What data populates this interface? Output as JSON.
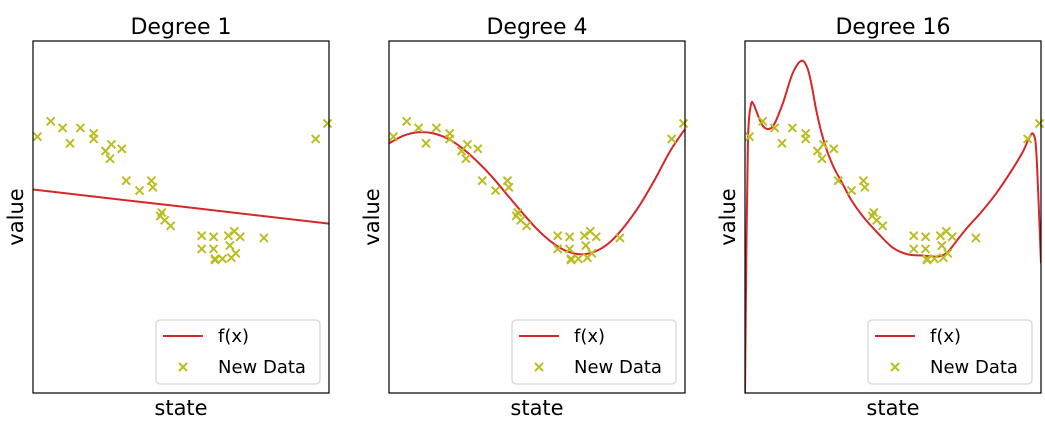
{
  "chart_data": [
    {
      "type": "line",
      "title": "Degree 1",
      "xlabel": "state",
      "ylabel": "value",
      "xlim": [
        0,
        1
      ],
      "ylim": [
        -1.6,
        1.6
      ],
      "legend": {
        "placement": "bottom-right",
        "line_label": "f(x)",
        "scatter_label": "New Data"
      },
      "curve_color": "#d62728",
      "marker_color": "#bcbd22",
      "curve": {
        "x": [
          0,
          1
        ],
        "y": [
          0.25,
          -0.06
        ]
      },
      "points": {
        "x": [
          0.015,
          0.06,
          0.1,
          0.125,
          0.16,
          0.205,
          0.205,
          0.245,
          0.26,
          0.265,
          0.3,
          0.315,
          0.36,
          0.4,
          0.405,
          0.43,
          0.435,
          0.445,
          0.465,
          0.57,
          0.57,
          0.61,
          0.61,
          0.615,
          0.615,
          0.64,
          0.66,
          0.665,
          0.67,
          0.68,
          0.685,
          0.7,
          0.78,
          0.955,
          0.995
        ],
        "y": [
          0.73,
          0.87,
          0.81,
          0.67,
          0.81,
          0.76,
          0.71,
          0.6,
          0.53,
          0.66,
          0.62,
          0.33,
          0.24,
          0.33,
          0.27,
          0.01,
          0.04,
          -0.03,
          -0.08,
          -0.17,
          -0.29,
          -0.18,
          -0.29,
          -0.39,
          -0.38,
          -0.38,
          -0.17,
          -0.26,
          -0.37,
          -0.13,
          -0.33,
          -0.18,
          -0.19,
          0.71,
          0.85
        ]
      }
    },
    {
      "type": "line",
      "title": "Degree 4",
      "xlabel": "state",
      "ylabel": "value",
      "xlim": [
        0,
        1
      ],
      "ylim": [
        -1.6,
        1.6
      ],
      "legend": {
        "placement": "bottom-right",
        "line_label": "f(x)",
        "scatter_label": "New Data"
      },
      "curve_color": "#d62728",
      "marker_color": "#bcbd22",
      "curve": {
        "x": [
          0,
          0.05,
          0.1,
          0.15,
          0.2,
          0.25,
          0.3,
          0.35,
          0.4,
          0.45,
          0.5,
          0.55,
          0.6,
          0.65,
          0.7,
          0.75,
          0.8,
          0.85,
          0.9,
          0.95,
          1
        ],
        "y": [
          0.67,
          0.74,
          0.77,
          0.76,
          0.71,
          0.62,
          0.5,
          0.36,
          0.2,
          0.04,
          -0.11,
          -0.23,
          -0.31,
          -0.34,
          -0.31,
          -0.22,
          -0.07,
          0.12,
          0.35,
          0.6,
          0.8
        ]
      },
      "points": {
        "x": [
          0.015,
          0.06,
          0.1,
          0.125,
          0.16,
          0.205,
          0.205,
          0.245,
          0.26,
          0.265,
          0.3,
          0.315,
          0.36,
          0.4,
          0.405,
          0.43,
          0.435,
          0.445,
          0.465,
          0.57,
          0.57,
          0.61,
          0.61,
          0.615,
          0.615,
          0.64,
          0.66,
          0.665,
          0.67,
          0.68,
          0.685,
          0.7,
          0.78,
          0.955,
          0.995
        ],
        "y": [
          0.73,
          0.87,
          0.81,
          0.67,
          0.81,
          0.76,
          0.71,
          0.6,
          0.53,
          0.66,
          0.62,
          0.33,
          0.24,
          0.33,
          0.27,
          0.01,
          0.04,
          -0.03,
          -0.08,
          -0.17,
          -0.29,
          -0.18,
          -0.29,
          -0.39,
          -0.38,
          -0.38,
          -0.17,
          -0.26,
          -0.37,
          -0.13,
          -0.33,
          -0.18,
          -0.19,
          0.71,
          0.85
        ]
      }
    },
    {
      "type": "line",
      "title": "Degree 16",
      "xlabel": "state",
      "ylabel": "value",
      "xlim": [
        0,
        1
      ],
      "ylim": [
        -1.6,
        1.6
      ],
      "legend": {
        "placement": "bottom-right",
        "line_label": "f(x)",
        "scatter_label": "New Data"
      },
      "curve_color": "#d62728",
      "marker_color": "#bcbd22",
      "curve": {
        "x": [
          0,
          0.004,
          0.01,
          0.02,
          0.03,
          0.04,
          0.06,
          0.08,
          0.1,
          0.13,
          0.16,
          0.19,
          0.21,
          0.225,
          0.24,
          0.26,
          0.28,
          0.3,
          0.33,
          0.36,
          0.4,
          0.45,
          0.5,
          0.55,
          0.6,
          0.65,
          0.68,
          0.7,
          0.72,
          0.75,
          0.8,
          0.85,
          0.9,
          0.94,
          0.96,
          0.975,
          0.985,
          1
        ],
        "y": [
          -1.6,
          -0.5,
          0.7,
          1.02,
          1.02,
          0.95,
          0.83,
          0.8,
          0.85,
          1.05,
          1.3,
          1.42,
          1.36,
          1.2,
          0.98,
          0.75,
          0.58,
          0.45,
          0.3,
          0.15,
          0.0,
          -0.15,
          -0.28,
          -0.34,
          -0.35,
          -0.36,
          -0.33,
          -0.27,
          -0.2,
          -0.1,
          0.05,
          0.22,
          0.42,
          0.6,
          0.72,
          0.75,
          0.55,
          -0.42
        ]
      },
      "points": {
        "x": [
          0.015,
          0.06,
          0.1,
          0.125,
          0.16,
          0.205,
          0.205,
          0.245,
          0.26,
          0.265,
          0.3,
          0.315,
          0.36,
          0.4,
          0.405,
          0.43,
          0.435,
          0.445,
          0.465,
          0.57,
          0.57,
          0.61,
          0.61,
          0.615,
          0.615,
          0.64,
          0.66,
          0.665,
          0.67,
          0.68,
          0.685,
          0.7,
          0.78,
          0.955,
          0.995
        ],
        "y": [
          0.73,
          0.87,
          0.81,
          0.67,
          0.81,
          0.76,
          0.71,
          0.6,
          0.53,
          0.66,
          0.62,
          0.33,
          0.24,
          0.33,
          0.27,
          0.01,
          0.04,
          -0.03,
          -0.08,
          -0.17,
          -0.29,
          -0.18,
          -0.29,
          -0.39,
          -0.38,
          -0.38,
          -0.17,
          -0.26,
          -0.37,
          -0.13,
          -0.33,
          -0.18,
          -0.19,
          0.71,
          0.85
        ]
      }
    }
  ]
}
